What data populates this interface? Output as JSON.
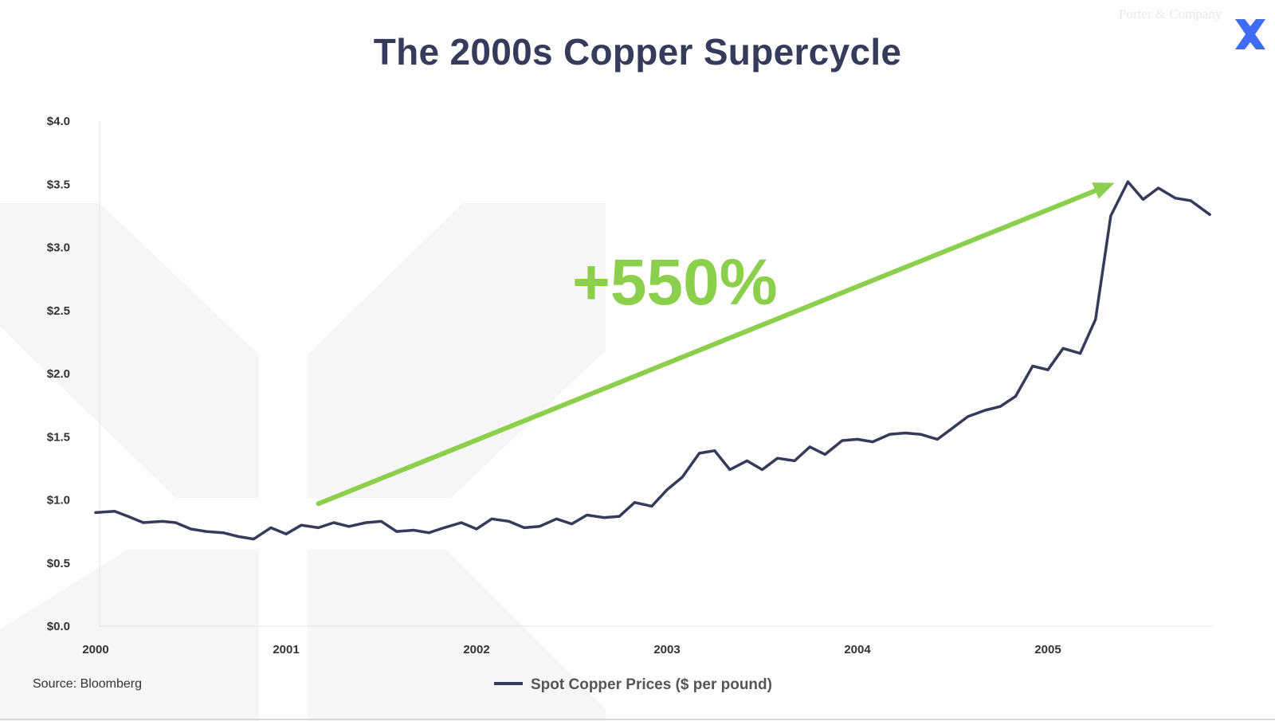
{
  "page": {
    "title": "The 2000s Copper Supercycle",
    "source": "Source: Bloomberg",
    "watermark": "Porter & Company",
    "annotation": "+550%"
  },
  "colors": {
    "line": "#363b5c",
    "arrow": "#8ccf4d",
    "title": "#363b5c",
    "logo": "#3f6bf5",
    "axis_text": "#333333",
    "axis_line": "#e4e4e4",
    "watermark_shape": "#f6f6f6"
  },
  "icons": {
    "logo": "x-brand-icon",
    "legend": "legend-line-icon",
    "arrow": "trend-arrow-icon"
  },
  "chart_data": {
    "type": "line",
    "title": "The 2000s Copper Supercycle",
    "xlabel": "",
    "ylabel": "",
    "xlim": [
      2000,
      2005.85
    ],
    "ylim": [
      0,
      4
    ],
    "ytick_values": [
      0,
      0.5,
      1,
      1.5,
      2,
      2.5,
      3,
      3.5,
      4
    ],
    "ytick_labels": [
      "$0.0",
      "$0.5",
      "$1.0",
      "$1.5",
      "$2.0",
      "$2.5",
      "$3.0",
      "$3.5",
      "$4.0"
    ],
    "xtick_values": [
      2000,
      2001,
      2002,
      2003,
      2004,
      2005
    ],
    "xtick_labels": [
      "2000",
      "2001",
      "2002",
      "2003",
      "2004",
      "2005"
    ],
    "grid": false,
    "legend_position": "bottom-center",
    "series": [
      {
        "name": "Spot Copper Prices ($ per pound)",
        "x": [
          2000.0,
          2000.1,
          2000.17,
          2000.25,
          2000.35,
          2000.42,
          2000.5,
          2000.58,
          2000.67,
          2000.75,
          2000.83,
          2000.92,
          2001.0,
          2001.08,
          2001.17,
          2001.25,
          2001.33,
          2001.42,
          2001.5,
          2001.58,
          2001.67,
          2001.75,
          2001.83,
          2001.92,
          2002.0,
          2002.08,
          2002.17,
          2002.25,
          2002.33,
          2002.42,
          2002.5,
          2002.58,
          2002.67,
          2002.75,
          2002.83,
          2002.92,
          2003.0,
          2003.08,
          2003.17,
          2003.25,
          2003.33,
          2003.42,
          2003.5,
          2003.58,
          2003.67,
          2003.75,
          2003.83,
          2003.92,
          2004.0,
          2004.08,
          2004.17,
          2004.25,
          2004.33,
          2004.42,
          2004.5,
          2004.58,
          2004.67,
          2004.75,
          2004.83,
          2004.92,
          2005.0,
          2005.08,
          2005.17,
          2005.25,
          2005.33,
          2005.42,
          2005.5,
          2005.58,
          2005.67,
          2005.75,
          2005.85
        ],
        "y": [
          0.9,
          0.91,
          0.87,
          0.82,
          0.83,
          0.82,
          0.77,
          0.75,
          0.74,
          0.71,
          0.69,
          0.78,
          0.73,
          0.8,
          0.78,
          0.82,
          0.79,
          0.82,
          0.83,
          0.75,
          0.76,
          0.74,
          0.78,
          0.82,
          0.77,
          0.85,
          0.83,
          0.78,
          0.79,
          0.85,
          0.81,
          0.88,
          0.86,
          0.87,
          0.98,
          0.95,
          1.08,
          1.18,
          1.37,
          1.39,
          1.24,
          1.31,
          1.24,
          1.33,
          1.31,
          1.42,
          1.36,
          1.47,
          1.48,
          1.46,
          1.52,
          1.53,
          1.52,
          1.48,
          1.57,
          1.66,
          1.71,
          1.74,
          1.82,
          2.06,
          2.03,
          2.2,
          2.16,
          2.43,
          3.25,
          3.52,
          3.38,
          3.47,
          3.39,
          3.37,
          3.26
        ]
      }
    ],
    "annotations": [
      {
        "text": "+550%",
        "type": "arrow",
        "from": [
          2001.17,
          0.97
        ],
        "to": [
          2005.35,
          3.51
        ]
      }
    ]
  }
}
